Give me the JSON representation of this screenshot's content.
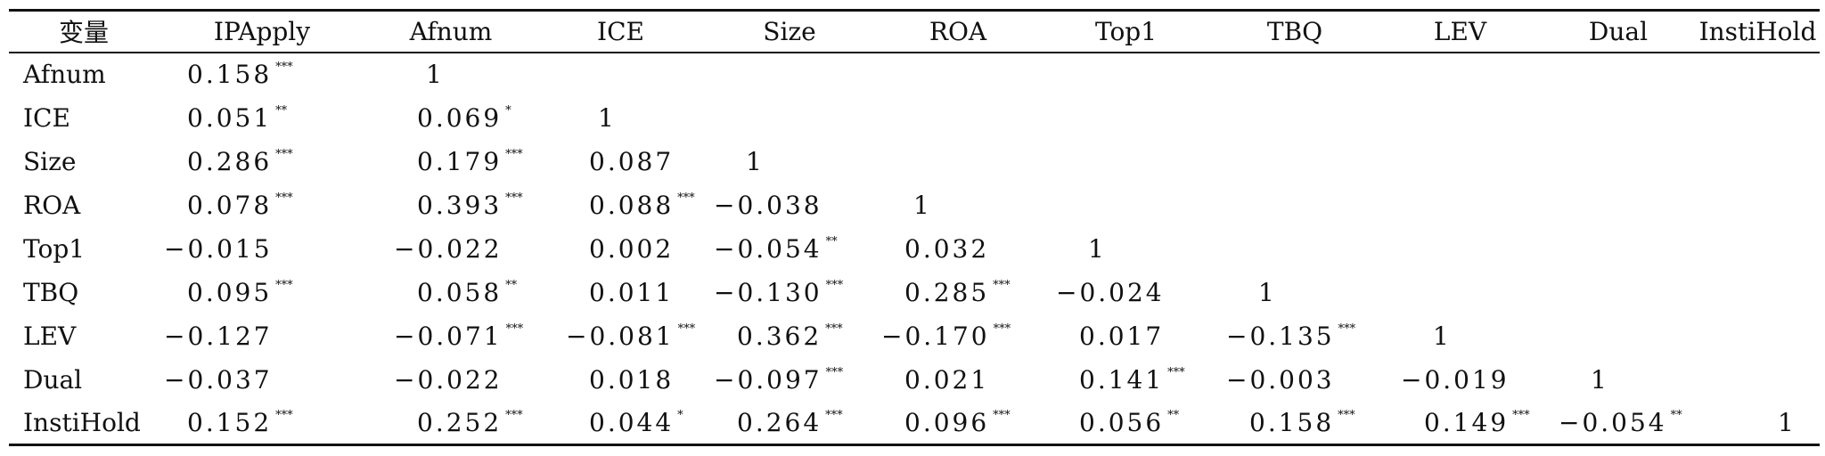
{
  "table": {
    "header": [
      "变量",
      "IPApply",
      "Afnum",
      "ICE",
      "Size",
      "ROA",
      "Top1",
      "TBQ",
      "LEV",
      "Dual",
      "InstiHold"
    ],
    "rows": [
      {
        "label": "Afnum",
        "cells": [
          {
            "v": "0.158",
            "s": "***"
          },
          {
            "v": "1",
            "s": ""
          },
          null,
          null,
          null,
          null,
          null,
          null,
          null,
          null
        ]
      },
      {
        "label": "ICE",
        "cells": [
          {
            "v": "0.051",
            "s": "**"
          },
          {
            "v": "0.069",
            "s": "*"
          },
          {
            "v": "1",
            "s": ""
          },
          null,
          null,
          null,
          null,
          null,
          null,
          null
        ]
      },
      {
        "label": "Size",
        "cells": [
          {
            "v": "0.286",
            "s": "***"
          },
          {
            "v": "0.179",
            "s": "***"
          },
          {
            "v": "0.087",
            "s": ""
          },
          {
            "v": "1",
            "s": ""
          },
          null,
          null,
          null,
          null,
          null,
          null
        ]
      },
      {
        "label": "ROA",
        "cells": [
          {
            "v": "0.078",
            "s": "***"
          },
          {
            "v": "0.393",
            "s": "***"
          },
          {
            "v": "0.088",
            "s": "***"
          },
          {
            "v": "−0.038",
            "s": ""
          },
          {
            "v": "1",
            "s": ""
          },
          null,
          null,
          null,
          null,
          null
        ]
      },
      {
        "label": "Top1",
        "cells": [
          {
            "v": "−0.015",
            "s": ""
          },
          {
            "v": "−0.022",
            "s": ""
          },
          {
            "v": "0.002",
            "s": ""
          },
          {
            "v": "−0.054",
            "s": "**"
          },
          {
            "v": "0.032",
            "s": ""
          },
          {
            "v": "1",
            "s": ""
          },
          null,
          null,
          null,
          null
        ]
      },
      {
        "label": "TBQ",
        "cells": [
          {
            "v": "0.095",
            "s": "***"
          },
          {
            "v": "0.058",
            "s": "**"
          },
          {
            "v": "0.011",
            "s": ""
          },
          {
            "v": "−0.130",
            "s": "***"
          },
          {
            "v": "0.285",
            "s": "***"
          },
          {
            "v": "−0.024",
            "s": ""
          },
          {
            "v": "1",
            "s": ""
          },
          null,
          null,
          null
        ]
      },
      {
        "label": "LEV",
        "cells": [
          {
            "v": "−0.127",
            "s": ""
          },
          {
            "v": "−0.071",
            "s": "***"
          },
          {
            "v": "−0.081",
            "s": "***"
          },
          {
            "v": "0.362",
            "s": "***"
          },
          {
            "v": "−0.170",
            "s": "***"
          },
          {
            "v": "0.017",
            "s": ""
          },
          {
            "v": "−0.135",
            "s": "***"
          },
          {
            "v": "1",
            "s": ""
          },
          null,
          null
        ]
      },
      {
        "label": "Dual",
        "cells": [
          {
            "v": "−0.037",
            "s": ""
          },
          {
            "v": "−0.022",
            "s": ""
          },
          {
            "v": "0.018",
            "s": ""
          },
          {
            "v": "−0.097",
            "s": "***"
          },
          {
            "v": "0.021",
            "s": ""
          },
          {
            "v": "0.141",
            "s": "***"
          },
          {
            "v": "−0.003",
            "s": ""
          },
          {
            "v": "−0.019",
            "s": ""
          },
          {
            "v": "1",
            "s": ""
          },
          null
        ]
      },
      {
        "label": "InstiHold",
        "cells": [
          {
            "v": "0.152",
            "s": "***"
          },
          {
            "v": "0.252",
            "s": "***"
          },
          {
            "v": "0.044",
            "s": "*"
          },
          {
            "v": "0.264",
            "s": "***"
          },
          {
            "v": "0.096",
            "s": "***"
          },
          {
            "v": "0.056",
            "s": "**"
          },
          {
            "v": "0.158",
            "s": "***"
          },
          {
            "v": "0.149",
            "s": "***"
          },
          {
            "v": "−0.054",
            "s": "**"
          },
          {
            "v": "1",
            "s": ""
          }
        ]
      }
    ]
  }
}
